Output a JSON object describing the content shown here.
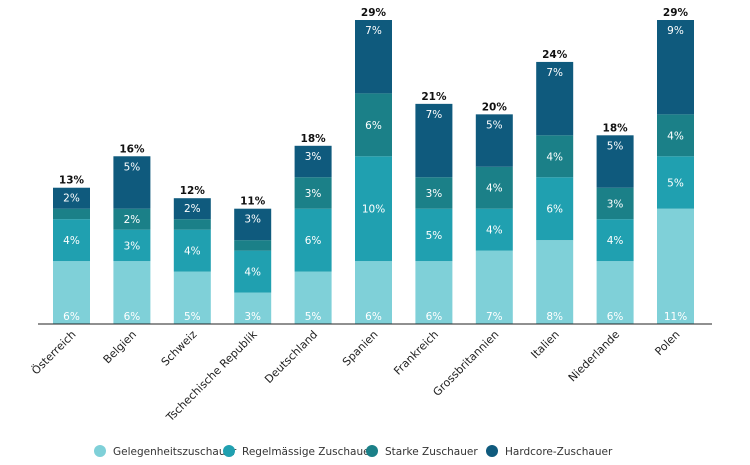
{
  "chart_data": {
    "type": "bar",
    "stacked": true,
    "categories": [
      "Österreich",
      "Belgien",
      "Schweiz",
      "Tschechische Republik",
      "Deutschland",
      "Spanien",
      "Frankreich",
      "Grossbritannien",
      "Italien",
      "Niederlande",
      "Polen"
    ],
    "series": [
      {
        "name": "Gelegenheitszuschauer",
        "color": "#7fd0d8",
        "values": [
          6,
          6,
          5,
          3,
          5,
          6,
          6,
          7,
          8,
          6,
          11
        ]
      },
      {
        "name": "Regelmässige Zuschauer",
        "color": "#20a0b0",
        "values": [
          4,
          3,
          4,
          4,
          6,
          10,
          5,
          4,
          6,
          4,
          5
        ]
      },
      {
        "name": "Starke Zuschauer",
        "color": "#1b8088",
        "values": [
          1,
          2,
          1,
          1,
          3,
          6,
          3,
          4,
          4,
          3,
          4
        ]
      },
      {
        "name": "Hardcore-Zuschauer",
        "color": "#0f5a7d",
        "values": [
          2,
          5,
          2,
          3,
          3,
          7,
          7,
          5,
          7,
          5,
          9
        ]
      }
    ],
    "segment_labels": [
      [
        "6%",
        "4%",
        "",
        "2%"
      ],
      [
        "6%",
        "3%",
        "2%",
        "5%"
      ],
      [
        "5%",
        "4%",
        "",
        "2%"
      ],
      [
        "3%",
        "4%",
        "",
        "3%"
      ],
      [
        "5%",
        "6%",
        "3%",
        "3%"
      ],
      [
        "6%",
        "10%",
        "6%",
        "7%"
      ],
      [
        "6%",
        "5%",
        "3%",
        "7%"
      ],
      [
        "7%",
        "4%",
        "4%",
        "5%"
      ],
      [
        "8%",
        "6%",
        "4%",
        "7%"
      ],
      [
        "6%",
        "4%",
        "3%",
        "5%"
      ],
      [
        "11%",
        "5%",
        "4%",
        "9%"
      ]
    ],
    "totals": [
      "13%",
      "16%",
      "12%",
      "11%",
      "18%",
      "29%",
      "21%",
      "20%",
      "24%",
      "18%",
      "29%"
    ],
    "ylim": [
      0,
      29
    ],
    "grid": false,
    "legend_position": "bottom"
  }
}
